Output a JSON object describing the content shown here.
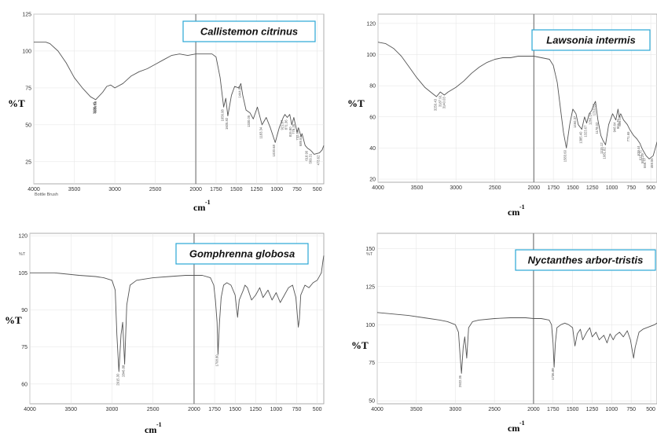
{
  "colors": {
    "trace": "#555555",
    "title_border": "#2aa7d6",
    "frame": "#9a9a9a"
  },
  "chart_data": [
    {
      "type": "line",
      "title": "Callistemon citrinus",
      "ylabel": "%T",
      "xlabel": "cm",
      "xlabel_sup": "-1",
      "note": "Bottle Brush",
      "xlim": [
        4000,
        420
      ],
      "ylim": [
        10,
        125
      ],
      "x_ticks": [
        4000,
        3500,
        3000,
        2500,
        2000,
        1750,
        1500,
        1250,
        1000,
        750,
        500
      ],
      "y_ticks": [
        25,
        50,
        75,
        100,
        125
      ],
      "peak_labels": [
        "3236.45",
        "3231.81",
        "3224.18",
        "1656.08",
        "1605.82",
        "1444.98",
        "1330.05",
        "1183.34",
        "1020.68",
        "921.87",
        "871.36",
        "815.80",
        "778.26",
        "732.59",
        "689.52",
        "618.90",
        "569.31",
        "473.62"
      ],
      "series": [
        {
          "x": [
            4000,
            3850,
            3800,
            3700,
            3600,
            3500,
            3400,
            3300,
            3236,
            3150,
            3100,
            3050,
            3000,
            2900,
            2800,
            2700,
            2600,
            2500,
            2400,
            2300,
            2200,
            2100,
            2000,
            1900,
            1800,
            1750,
            1700,
            1656,
            1630,
            1605,
            1560,
            1520,
            1470,
            1444,
            1420,
            1380,
            1330,
            1290,
            1240,
            1183,
            1130,
            1080,
            1020,
            970,
            921,
            900,
            871,
            840,
            815,
            790,
            778,
            750,
            732,
            700,
            689,
            650,
            618,
            590,
            569,
            540,
            473,
            440,
            420
          ],
          "y": [
            106,
            106,
            105,
            100,
            92,
            82,
            75,
            69,
            67,
            72,
            76,
            77,
            75,
            78,
            83,
            86,
            88,
            91,
            94,
            97,
            98,
            97,
            98,
            98,
            98,
            96,
            82,
            62,
            68,
            56,
            70,
            76,
            75,
            78,
            70,
            60,
            58,
            54,
            62,
            50,
            55,
            48,
            38,
            48,
            55,
            57,
            55,
            57,
            50,
            55,
            52,
            45,
            48,
            42,
            44,
            36,
            34,
            33,
            32,
            30,
            31,
            33,
            36
          ]
        }
      ]
    },
    {
      "type": "line",
      "title": "Lawsonia intermis",
      "ylabel": "%T",
      "xlabel": "cm",
      "xlabel_sup": "-1",
      "xlim": [
        4000,
        420
      ],
      "ylim": [
        18,
        126
      ],
      "x_ticks": [
        4000,
        3500,
        3000,
        2500,
        2000,
        1750,
        1500,
        1250,
        1000,
        750,
        500
      ],
      "y_ticks": [
        20,
        40,
        60,
        80,
        100,
        120
      ],
      "peak_labels": [
        "3250.43",
        "3187.91",
        "3140.03",
        "1583.60",
        "1460.37",
        "1385.40",
        "1323.67",
        "1260.14",
        "1210.65",
        "1178.02",
        "1115.12",
        "1081.82",
        "948.64",
        "904.75",
        "886.09",
        "771.65",
        "639.44",
        "615.75",
        "593.29",
        "559.77",
        "469.55"
      ],
      "series": [
        {
          "x": [
            4000,
            3900,
            3800,
            3700,
            3600,
            3500,
            3400,
            3300,
            3250,
            3200,
            3150,
            3100,
            3000,
            2900,
            2800,
            2700,
            2600,
            2500,
            2400,
            2300,
            2200,
            2100,
            2000,
            1900,
            1800,
            1750,
            1700,
            1650,
            1620,
            1583,
            1540,
            1500,
            1460,
            1430,
            1385,
            1350,
            1323,
            1290,
            1260,
            1230,
            1210,
            1178,
            1140,
            1115,
            1081,
            1040,
            990,
            948,
            920,
            904,
            886,
            850,
            800,
            771,
            720,
            680,
            639,
            615,
            593,
            559,
            520,
            469,
            440,
            420
          ],
          "y": [
            108,
            107,
            104,
            99,
            92,
            85,
            79,
            75,
            73,
            76,
            74,
            76,
            79,
            83,
            88,
            92,
            95,
            97,
            98,
            98,
            99,
            99,
            99,
            98,
            97,
            93,
            82,
            62,
            50,
            40,
            55,
            65,
            62,
            55,
            52,
            60,
            56,
            62,
            64,
            68,
            70,
            58,
            48,
            45,
            42,
            55,
            62,
            58,
            65,
            60,
            62,
            58,
            55,
            52,
            48,
            46,
            43,
            40,
            38,
            35,
            33,
            35,
            40,
            44
          ]
        }
      ]
    },
    {
      "type": "line",
      "title": "Gomphrenna globosa",
      "ylabel": "%T",
      "xlabel": "cm",
      "xlabel_sup": "-1",
      "small_ylabel": "%T",
      "xlim": [
        4000,
        420
      ],
      "ylim": [
        52,
        121
      ],
      "x_ticks": [
        4000,
        3500,
        3000,
        2500,
        2000,
        1750,
        1500,
        1250,
        1000,
        750,
        500
      ],
      "y_ticks": [
        60,
        75,
        90,
        105,
        120
      ],
      "peak_labels": [
        "2915.30",
        "2846.88",
        "1708.80"
      ],
      "series": [
        {
          "x": [
            4000,
            3700,
            3400,
            3200,
            3100,
            3000,
            2960,
            2940,
            2915,
            2890,
            2870,
            2846,
            2820,
            2780,
            2700,
            2500,
            2300,
            2100,
            2000,
            1900,
            1800,
            1760,
            1740,
            1720,
            1708,
            1690,
            1670,
            1640,
            1600,
            1550,
            1500,
            1470,
            1450,
            1400,
            1380,
            1350,
            1300,
            1250,
            1200,
            1160,
            1100,
            1050,
            1000,
            950,
            900,
            850,
            800,
            760,
            730,
            718,
            700,
            650,
            600,
            550,
            500,
            450,
            430,
            420
          ],
          "y": [
            105,
            105,
            104,
            103.5,
            103,
            102,
            98,
            80,
            65,
            80,
            85,
            68,
            92,
            100,
            102,
            103,
            103.5,
            104,
            104,
            104,
            103,
            100,
            94,
            85,
            72,
            85,
            95,
            100,
            101,
            100,
            96,
            87,
            94,
            98,
            100,
            99,
            94,
            96,
            99,
            95,
            98,
            94,
            97,
            93,
            96,
            99,
            100,
            95,
            83,
            86,
            96,
            100,
            99,
            101,
            102,
            105,
            110,
            112
          ]
        }
      ]
    },
    {
      "type": "line",
      "title": "Nyctanthes arbor-tristis",
      "ylabel": "%T",
      "xlabel": "cm",
      "xlabel_sup": "-1",
      "small_ylabel": "%T",
      "xlim": [
        4000,
        420
      ],
      "ylim": [
        48,
        160
      ],
      "x_ticks": [
        4000,
        3500,
        3000,
        2500,
        2000,
        1750,
        1500,
        1250,
        1000,
        750,
        500
      ],
      "y_ticks": [
        50,
        75,
        100,
        125,
        150
      ],
      "peak_labels": [
        "2922.35",
        "1736.89"
      ],
      "series": [
        {
          "x": [
            4000,
            3800,
            3600,
            3400,
            3200,
            3100,
            3000,
            2960,
            2940,
            2922,
            2900,
            2880,
            2855,
            2830,
            2780,
            2700,
            2500,
            2300,
            2100,
            2000,
            1900,
            1800,
            1770,
            1750,
            1736,
            1720,
            1700,
            1650,
            1600,
            1550,
            1500,
            1470,
            1440,
            1400,
            1370,
            1320,
            1280,
            1250,
            1200,
            1160,
            1100,
            1060,
            1020,
            980,
            950,
            900,
            850,
            800,
            760,
            720,
            700,
            650,
            600,
            550,
            500,
            450,
            420
          ],
          "y": [
            108,
            107,
            106,
            104.5,
            103,
            102,
            100,
            95,
            80,
            68,
            85,
            92,
            78,
            98,
            102,
            103,
            104,
            104.5,
            104.5,
            104,
            104,
            103,
            100,
            88,
            72,
            88,
            98,
            100,
            101,
            100,
            98,
            86,
            94,
            97,
            90,
            95,
            98,
            92,
            95,
            90,
            93,
            88,
            94,
            90,
            93,
            95,
            92,
            96,
            90,
            78,
            85,
            95,
            97,
            98,
            99,
            100,
            101
          ]
        }
      ]
    }
  ]
}
